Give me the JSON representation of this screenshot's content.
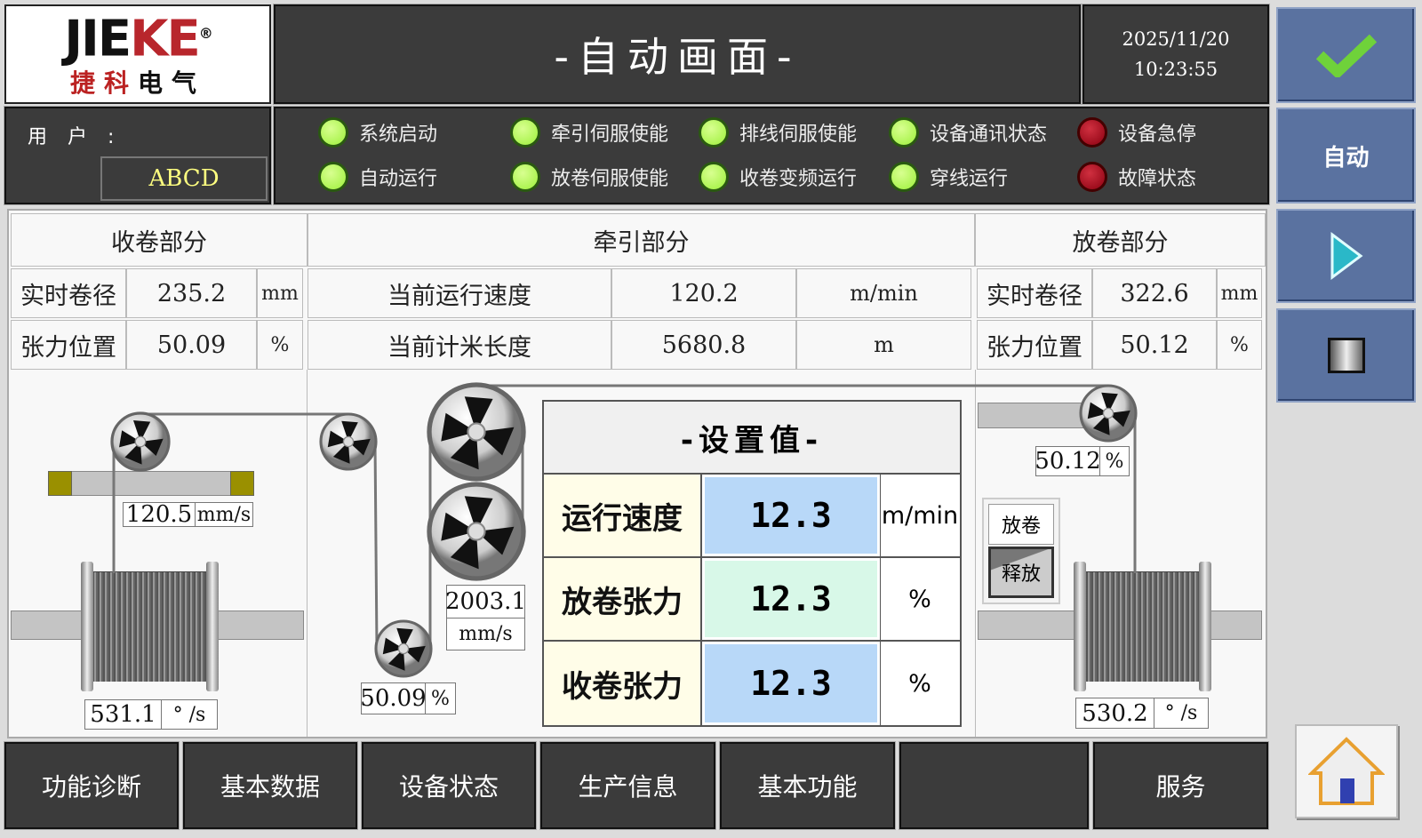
{
  "header": {
    "logo_text": "JIEKE",
    "logo_sub": "捷科电气",
    "title": "-自动画面-",
    "date": "2025/11/20",
    "time": "10:23:55"
  },
  "side_buttons": {
    "confirm_icon": "checkmark-icon",
    "auto_label": "自动",
    "start_icon": "play-icon",
    "stop_icon": "stop-icon",
    "home_icon": "home-icon"
  },
  "user": {
    "label": "用 户 :",
    "value": "ABCD"
  },
  "indicators": [
    {
      "label": "系统启动",
      "state": "on"
    },
    {
      "label": "牵引伺服使能",
      "state": "on"
    },
    {
      "label": "排线伺服使能",
      "state": "on"
    },
    {
      "label": "设备通讯状态",
      "state": "on"
    },
    {
      "label": "设备急停",
      "state": "off"
    },
    {
      "label": "自动运行",
      "state": "on"
    },
    {
      "label": "放卷伺服使能",
      "state": "on"
    },
    {
      "label": "收卷变频运行",
      "state": "on"
    },
    {
      "label": "穿线运行",
      "state": "on"
    },
    {
      "label": "故障状态",
      "state": "off"
    }
  ],
  "colors": {
    "led_on": "#9cf03a",
    "led_off": "#8a0010",
    "button_blue": "#5a72a0",
    "panel_dark": "#3b3b3b"
  },
  "winding": {
    "title": "收卷部分",
    "rows": [
      {
        "label": "实时卷径",
        "value": "235.2",
        "unit": "mm"
      },
      {
        "label": "张力位置",
        "value": "50.09",
        "unit": "%"
      }
    ],
    "speed": "120.5",
    "speed_unit": "mm/s",
    "spool_speed": "531.1",
    "spool_unit": "° /s",
    "tension": "50.09",
    "tension_unit": "%"
  },
  "traction": {
    "title": "牵引部分",
    "rows": [
      {
        "label": "当前运行速度",
        "value": "120.2",
        "unit": "m/min"
      },
      {
        "label": "当前计米长度",
        "value": "5680.8",
        "unit": "m"
      }
    ],
    "speed": "2003.1",
    "speed_unit": "mm/s"
  },
  "unwinding": {
    "title": "放卷部分",
    "rows": [
      {
        "label": "实时卷径",
        "value": "322.6",
        "unit": "mm"
      },
      {
        "label": "张力位置",
        "value": "50.12",
        "unit": "%"
      }
    ],
    "tension": "50.12",
    "tension_unit": "%",
    "spool_speed": "530.2",
    "spool_unit": "° /s",
    "mode_label": "放卷",
    "release_button": "释放"
  },
  "settings": {
    "title": "-设置值-",
    "rows": [
      {
        "label": "运行速度",
        "value": "12.3",
        "unit": "m/min"
      },
      {
        "label": "放卷张力",
        "value": "12.3",
        "unit": "%"
      },
      {
        "label": "收卷张力",
        "value": "12.3",
        "unit": "%"
      }
    ]
  },
  "bottom_nav": [
    "功能诊断",
    "基本数据",
    "设备状态",
    "生产信息",
    "基本功能",
    "",
    "服务"
  ]
}
